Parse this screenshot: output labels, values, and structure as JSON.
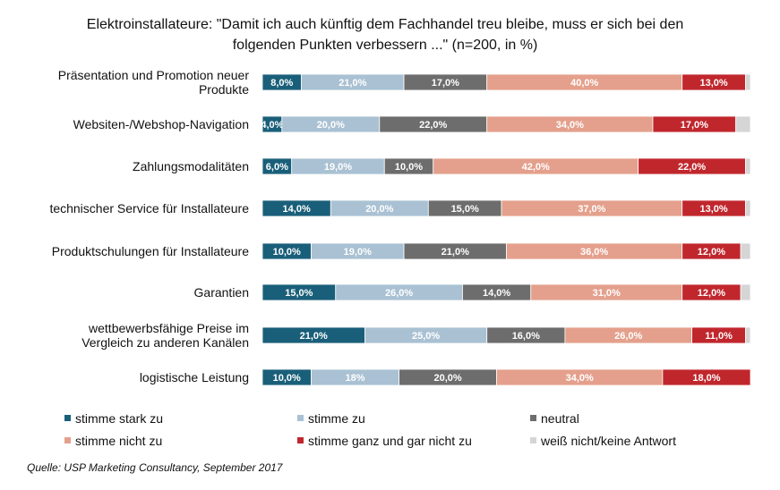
{
  "chart_data": {
    "type": "bar",
    "orientation": "horizontal",
    "stacked": true,
    "title_lines": [
      "Elektroinstallateure: \"Damit ich auch künftig dem Fachhandel treu bleibe, muss er sich bei den",
      "folgenden Punkten verbessern ...\" (n=200, in %)"
    ],
    "categories": [
      [
        "Präsentation und Promotion neuer",
        "Produkte"
      ],
      [
        "Websiten-/Webshop-Navigation"
      ],
      [
        "Zahlungsmodalitäten"
      ],
      [
        "technischer Service für Installateure"
      ],
      [
        "Produktschulungen für Installateure"
      ],
      [
        "Garantien"
      ],
      [
        "wettbewerbsfähige Preise im",
        "Vergleich zu anderen Kanälen"
      ],
      [
        "logistische Leistung"
      ]
    ],
    "series": [
      {
        "name": "stimme stark  zu",
        "color": "#1a5f7a",
        "text_color": "#ffffff",
        "values": [
          8,
          4,
          6,
          14,
          10,
          15,
          21,
          10
        ],
        "labels": [
          "8,0%",
          "4,0%",
          "6,0%",
          "14,0%",
          "10,0%",
          "15,0%",
          "21,0%",
          "10,0%"
        ]
      },
      {
        "name": "stimme zu",
        "color": "#a9c1d3",
        "text_color": "#ffffff",
        "values": [
          21,
          20,
          19,
          20,
          19,
          26,
          25,
          18
        ],
        "labels": [
          "21,0%",
          "20,0%",
          "19,0%",
          "20,0%",
          "19,0%",
          "26,0%",
          "25,0%",
          "18%"
        ]
      },
      {
        "name": "neutral",
        "color": "#6d6d6d",
        "text_color": "#ffffff",
        "values": [
          17,
          22,
          10,
          15,
          21,
          14,
          16,
          20
        ],
        "labels": [
          "17,0%",
          "22,0%",
          "10,0%",
          "15,0%",
          "21,0%",
          "14,0%",
          "16,0%",
          "20,0%"
        ]
      },
      {
        "name": "stimme nicht zu",
        "color": "#e4a08c",
        "text_color": "#ffffff",
        "values": [
          40,
          34,
          42,
          37,
          36,
          31,
          26,
          34
        ],
        "labels": [
          "40,0%",
          "34,0%",
          "42,0%",
          "37,0%",
          "36,0%",
          "31,0%",
          "26,0%",
          "34,0%"
        ]
      },
      {
        "name": "stimme ganz und gar nicht zu",
        "color": "#c0272d",
        "text_color": "#ffffff",
        "values": [
          13,
          17,
          22,
          13,
          12,
          12,
          11,
          18
        ],
        "labels": [
          "13,0%",
          "17,0%",
          "22,0%",
          "13,0%",
          "12,0%",
          "12,0%",
          "11,0%",
          "18,0%"
        ]
      },
      {
        "name": "weiß nicht/keine Antwort",
        "color": "#d5d5d5",
        "text_color": "#ffffff",
        "values": [
          1,
          3,
          1,
          1,
          2,
          2,
          1,
          0
        ],
        "labels": [
          "",
          "",
          "",
          "",
          "",
          "",
          "",
          ""
        ]
      }
    ],
    "xlim": [
      0,
      100
    ],
    "legend_position": "bottom",
    "grid": false
  },
  "source": "Quelle: USP Marketing Consultancy, September 2017"
}
